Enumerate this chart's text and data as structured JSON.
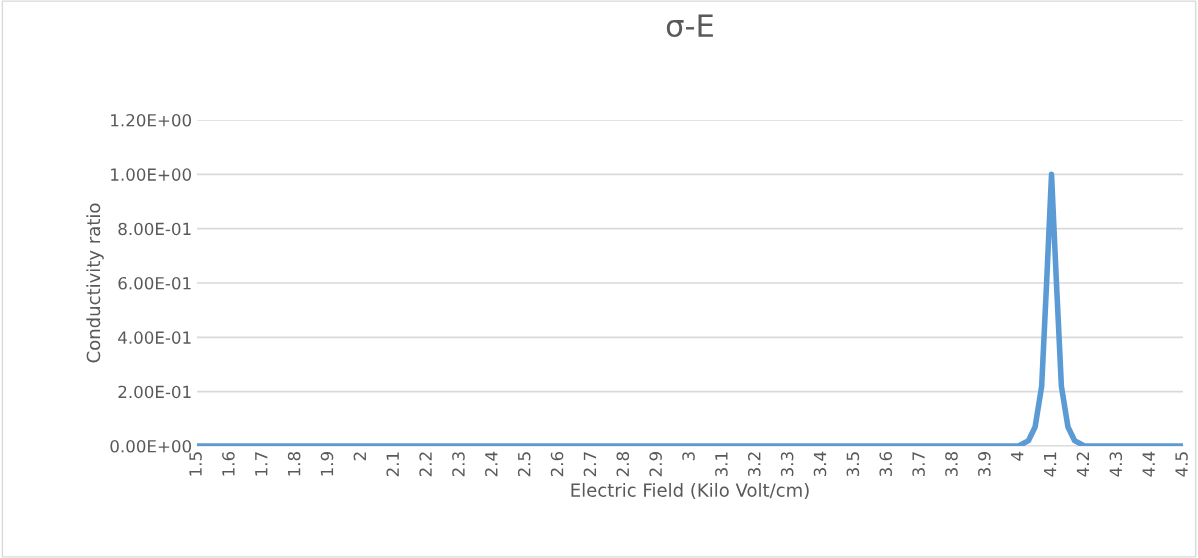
{
  "chart_data": {
    "type": "line",
    "title": "σ-E",
    "xlabel": "Electric Field (Kilo Volt/cm)",
    "ylabel": "Conductivity ratio",
    "x": [
      1.5,
      2.0,
      3.0,
      4.0,
      4.03,
      4.05,
      4.07,
      4.085,
      4.1,
      4.115,
      4.13,
      4.15,
      4.17,
      4.2,
      4.5
    ],
    "series": [
      {
        "color": "#5b9bd5",
        "values": [
          0,
          0,
          0,
          0,
          0.02,
          0.07,
          0.22,
          0.6,
          1.0,
          0.6,
          0.22,
          0.07,
          0.02,
          0,
          0
        ]
      }
    ],
    "xlim": [
      1.5,
      4.5
    ],
    "xticks": [
      1.5,
      1.6,
      1.7,
      1.8,
      1.9,
      2,
      2.1,
      2.2,
      2.3,
      2.4,
      2.5,
      2.6,
      2.7,
      2.8,
      2.9,
      3,
      3.1,
      3.2,
      3.3,
      3.4,
      3.5,
      3.6,
      3.7,
      3.8,
      3.9,
      4,
      4.1,
      4.2,
      4.3,
      4.4,
      4.5
    ],
    "ylim": [
      0,
      1.2
    ],
    "yticks": [
      {
        "value": 0,
        "label": "0.00E+00"
      },
      {
        "value": 0.2,
        "label": "2.00E-01"
      },
      {
        "value": 0.4,
        "label": "4.00E-01"
      },
      {
        "value": 0.6,
        "label": "6.00E-01"
      },
      {
        "value": 0.8,
        "label": "8.00E-01"
      },
      {
        "value": 1.0,
        "label": "1.00E+00"
      },
      {
        "value": 1.2,
        "label": "1.20E+00"
      }
    ],
    "grid": "y",
    "marker": "none",
    "line_style": "solid",
    "legend": false
  }
}
